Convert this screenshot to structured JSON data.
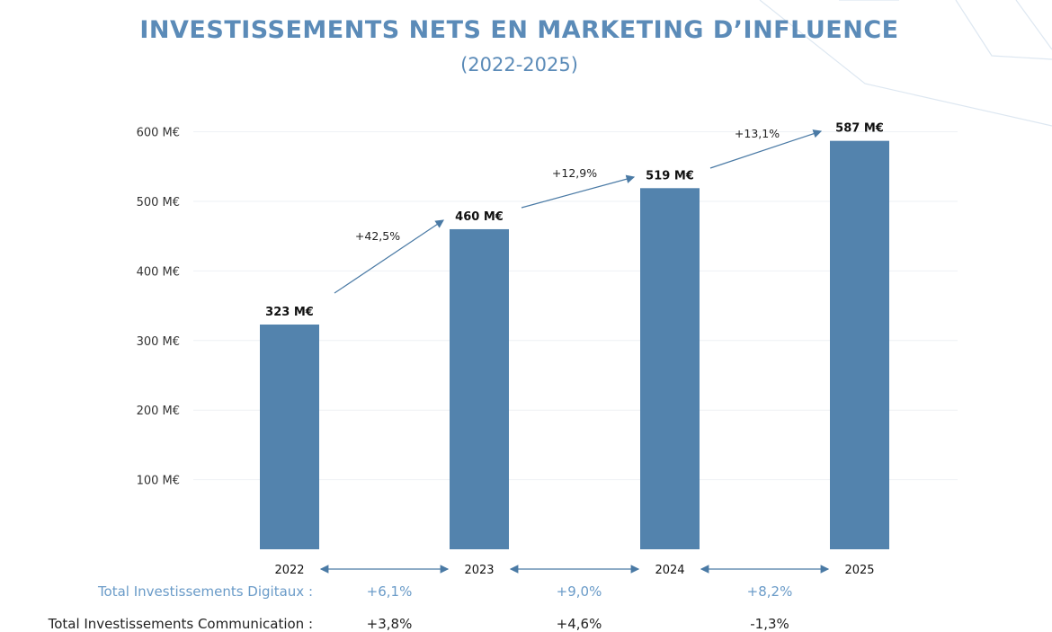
{
  "chart_data": {
    "type": "bar",
    "title": "INVESTISSEMENTS NETS EN MARKETING D’INFLUENCE",
    "subtitle": "(2022-2025)",
    "categories": [
      "2022",
      "2023",
      "2024",
      "2025"
    ],
    "values": [
      323,
      460,
      519,
      587
    ],
    "data_labels": [
      "323 M€",
      "460 M€",
      "519 M€",
      "587 M€"
    ],
    "growth_labels": [
      "+42,5%",
      "+12,9%",
      "+13,1%"
    ],
    "ylim": [
      0,
      600
    ],
    "yticks": [
      100,
      200,
      300,
      400,
      500,
      600
    ],
    "ytick_labels": [
      "100 M€",
      "200 M€",
      "300 M€",
      "400 M€",
      "500 M€",
      "600 M€"
    ],
    "grid": true,
    "bar_color": "#5383ad",
    "arrow_color": "#4a7aa5"
  },
  "footer": {
    "digital": {
      "label": "Total Investissements Digitaux :",
      "values": [
        "+6,1%",
        "+9,0%",
        "+8,2%"
      ],
      "color": "#6a9bc8"
    },
    "communication": {
      "label": "Total Investissements Communication :",
      "values": [
        "+3,8%",
        "+4,6%",
        "-1,3%"
      ]
    }
  }
}
